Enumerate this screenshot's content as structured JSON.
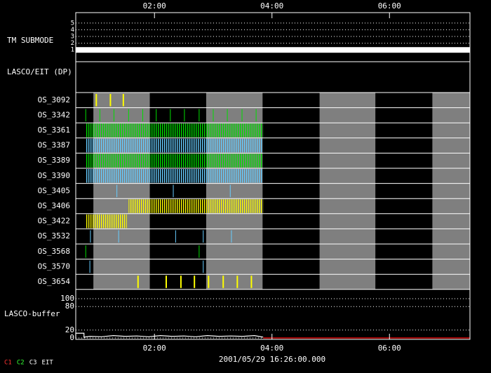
{
  "chart_data": {
    "type": "timeline",
    "xlim": [
      0.66,
      7.37
    ],
    "xticks": [
      {
        "value": 2,
        "label": "02:00"
      },
      {
        "value": 4,
        "label": "04:00"
      },
      {
        "value": 6,
        "label": "06:00"
      }
    ],
    "date_label": "2001/05/29 16:26:00.000",
    "submode": {
      "label": "TM SUBMODE",
      "ylim": [
        0.5,
        5.3
      ],
      "yticks": [
        1,
        2,
        3,
        4,
        5
      ],
      "value": 1,
      "color": "#ffffff"
    },
    "group_label": "LASCO/EIT (DP)",
    "shaded": [
      [
        0.96,
        1.92
      ],
      [
        2.88,
        3.84
      ],
      [
        4.81,
        5.76
      ],
      [
        6.73,
        7.37
      ]
    ],
    "shade_color": "#7f7f7f",
    "rows": [
      {
        "name": "OS_3092",
        "color": "#ffff00",
        "events": [
          1.01,
          1.25,
          1.47
        ],
        "bursts": []
      },
      {
        "name": "OS_3342",
        "color": "#00dd00",
        "events": [
          0.83,
          1.07,
          1.31,
          1.56,
          1.8,
          2.03,
          2.27,
          2.51,
          2.76,
          3.0,
          3.24,
          3.49,
          3.73
        ],
        "bursts": []
      },
      {
        "name": "OS_3361",
        "color": "#00dd00",
        "events": [],
        "bursts": [
          [
            0.83,
            3.85
          ]
        ]
      },
      {
        "name": "OS_3387",
        "color": "#66ccff",
        "events": [],
        "bursts": [
          [
            0.83,
            3.83
          ]
        ]
      },
      {
        "name": "OS_3389",
        "color": "#00dd00",
        "events": [],
        "bursts": [
          [
            0.83,
            3.83
          ]
        ]
      },
      {
        "name": "OS_3390",
        "color": "#66ccff",
        "events": [],
        "bursts": [
          [
            0.83,
            3.83
          ]
        ]
      },
      {
        "name": "OS_3405",
        "color": "#66ccff",
        "events": [
          1.36,
          2.32,
          3.29
        ],
        "bursts": []
      },
      {
        "name": "OS_3406",
        "color": "#ffff00",
        "events": [],
        "bursts": [
          [
            1.56,
            3.85
          ]
        ]
      },
      {
        "name": "OS_3422",
        "color": "#ffff00",
        "events": [],
        "bursts": [
          [
            0.82,
            1.53
          ]
        ]
      },
      {
        "name": "OS_3532",
        "color": "#66ccff",
        "events": [
          0.91,
          1.39,
          2.36,
          2.83,
          3.31
        ],
        "bursts": []
      },
      {
        "name": "OS_3568",
        "color": "#00dd00",
        "events": [
          0.83,
          2.76
        ],
        "bursts": []
      },
      {
        "name": "OS_3570",
        "color": "#66ccff",
        "events": [
          0.9,
          2.83
        ],
        "bursts": []
      },
      {
        "name": "OS_3654",
        "color": "#ffff00",
        "events": [
          1.72,
          2.2,
          2.45,
          2.68,
          2.92,
          3.17,
          3.41,
          3.65
        ],
        "bursts": []
      }
    ],
    "buffer": {
      "label": "LASCO-buffer",
      "ylim": [
        0,
        100
      ],
      "yticks": [
        0,
        20,
        80,
        100
      ],
      "series": [
        {
          "color": "#ffffff",
          "x": [
            0.66,
            0.66,
            0.8,
            0.8,
            0.9,
            1.1,
            1.3,
            1.5,
            1.7,
            1.9,
            2.1,
            2.3,
            2.5,
            2.7,
            2.9,
            3.1,
            3.3,
            3.5,
            3.7,
            3.85
          ],
          "values": [
            0,
            12,
            12,
            2,
            4,
            3,
            6,
            4,
            5,
            3,
            6,
            4,
            5,
            3,
            6,
            4,
            5,
            4,
            6,
            2
          ]
        },
        {
          "color": "#ff0000",
          "x": [
            3.85,
            7.37
          ],
          "values": [
            0,
            0
          ]
        }
      ]
    },
    "legend": [
      {
        "name": "C1",
        "color": "#ff3333"
      },
      {
        "name": "C2",
        "color": "#33ff33"
      },
      {
        "name": "C3",
        "color": "#ffffff"
      },
      {
        "name": "EIT",
        "color": "#ffffff"
      }
    ]
  }
}
